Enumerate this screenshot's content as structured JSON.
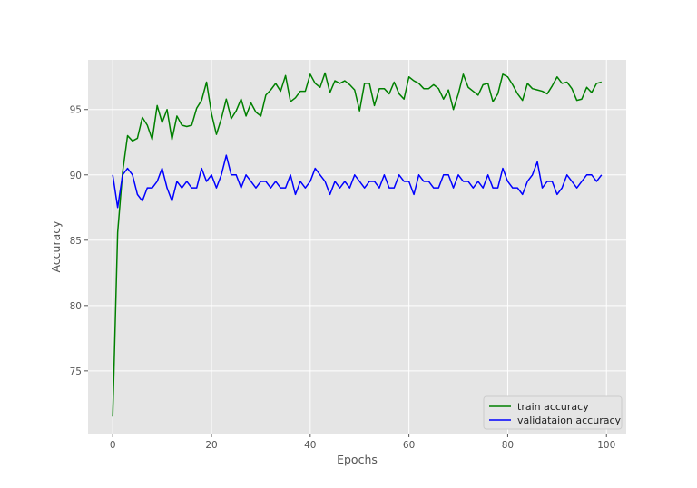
{
  "chart_data": {
    "type": "line",
    "title": "",
    "xlabel": "Epochs",
    "ylabel": "Accuracy",
    "xlim": [
      -5,
      104
    ],
    "ylim": [
      70.2,
      98.8
    ],
    "xticks": [
      0,
      20,
      40,
      60,
      80,
      100
    ],
    "yticks": [
      75,
      80,
      85,
      90,
      95
    ],
    "grid": true,
    "legend_position": "lower-right",
    "background_color": "#e5e5e5",
    "grid_color": "#ffffff",
    "series": [
      {
        "name": "train accuracy",
        "color": "#008000",
        "values": [
          71.5,
          85.6,
          90.2,
          93.0,
          92.6,
          92.8,
          94.4,
          93.8,
          92.7,
          95.3,
          94.0,
          95.0,
          92.7,
          94.5,
          93.8,
          93.7,
          93.8,
          95.1,
          95.7,
          97.1,
          94.7,
          93.1,
          94.3,
          95.8,
          94.3,
          94.9,
          95.8,
          94.5,
          95.5,
          94.8,
          94.5,
          96.1,
          96.5,
          97.0,
          96.4,
          97.6,
          95.6,
          95.9,
          96.4,
          96.4,
          97.7,
          97.0,
          96.7,
          97.8,
          96.3,
          97.2,
          97.0,
          97.2,
          96.9,
          96.5,
          94.9,
          97.0,
          97.0,
          95.3,
          96.6,
          96.6,
          96.2,
          97.1,
          96.2,
          95.8,
          97.5,
          97.2,
          97.0,
          96.6,
          96.6,
          96.9,
          96.6,
          95.8,
          96.5,
          95.0,
          96.2,
          97.7,
          96.7,
          96.4,
          96.1,
          96.9,
          97.0,
          95.6,
          96.2,
          97.7,
          97.5,
          96.9,
          96.2,
          95.7,
          97.0,
          96.6,
          96.5,
          96.4,
          96.2,
          96.8,
          97.5,
          97.0,
          97.1,
          96.6,
          95.7,
          95.8,
          96.7,
          96.3,
          97.0,
          97.1
        ]
      },
      {
        "name": "validataion accuracy",
        "color": "#0000ff",
        "values": [
          90.0,
          87.5,
          90.0,
          90.5,
          90.0,
          88.5,
          88.0,
          89.0,
          89.0,
          89.5,
          90.5,
          89.0,
          88.0,
          89.5,
          89.0,
          89.5,
          89.0,
          89.0,
          90.5,
          89.5,
          90.0,
          89.0,
          90.0,
          91.5,
          90.0,
          90.0,
          89.0,
          90.0,
          89.5,
          89.0,
          89.5,
          89.5,
          89.0,
          89.5,
          89.0,
          89.0,
          90.0,
          88.5,
          89.5,
          89.0,
          89.5,
          90.5,
          90.0,
          89.5,
          88.5,
          89.5,
          89.0,
          89.5,
          89.0,
          90.0,
          89.5,
          89.0,
          89.5,
          89.5,
          89.0,
          90.0,
          89.0,
          89.0,
          90.0,
          89.5,
          89.5,
          88.5,
          90.0,
          89.5,
          89.5,
          89.0,
          89.0,
          90.0,
          90.0,
          89.0,
          90.0,
          89.5,
          89.5,
          89.0,
          89.5,
          89.0,
          90.0,
          89.0,
          89.0,
          90.5,
          89.5,
          89.0,
          89.0,
          88.5,
          89.5,
          90.0,
          91.0,
          89.0,
          89.5,
          89.5,
          88.5,
          89.0,
          90.0,
          89.5,
          89.0,
          89.5,
          90.0,
          90.0,
          89.5,
          90.0
        ]
      }
    ]
  }
}
